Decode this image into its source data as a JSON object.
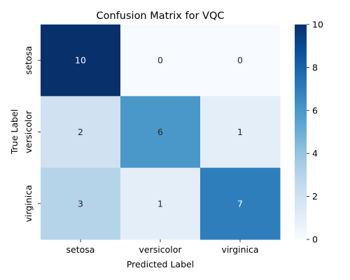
{
  "chart_data": {
    "type": "heatmap",
    "title": "Confusion Matrix for VQC",
    "xlabel": "Predicted Label",
    "ylabel": "True Label",
    "x_categories": [
      "setosa",
      "versicolor",
      "virginica"
    ],
    "y_categories": [
      "setosa",
      "versicolor",
      "virginica"
    ],
    "values": [
      [
        10,
        0,
        0
      ],
      [
        2,
        6,
        1
      ],
      [
        3,
        1,
        7
      ]
    ],
    "colorbar": {
      "range": [
        0,
        10
      ],
      "ticks": [
        0,
        2,
        4,
        6,
        8,
        10
      ],
      "colormap": "Blues"
    }
  }
}
